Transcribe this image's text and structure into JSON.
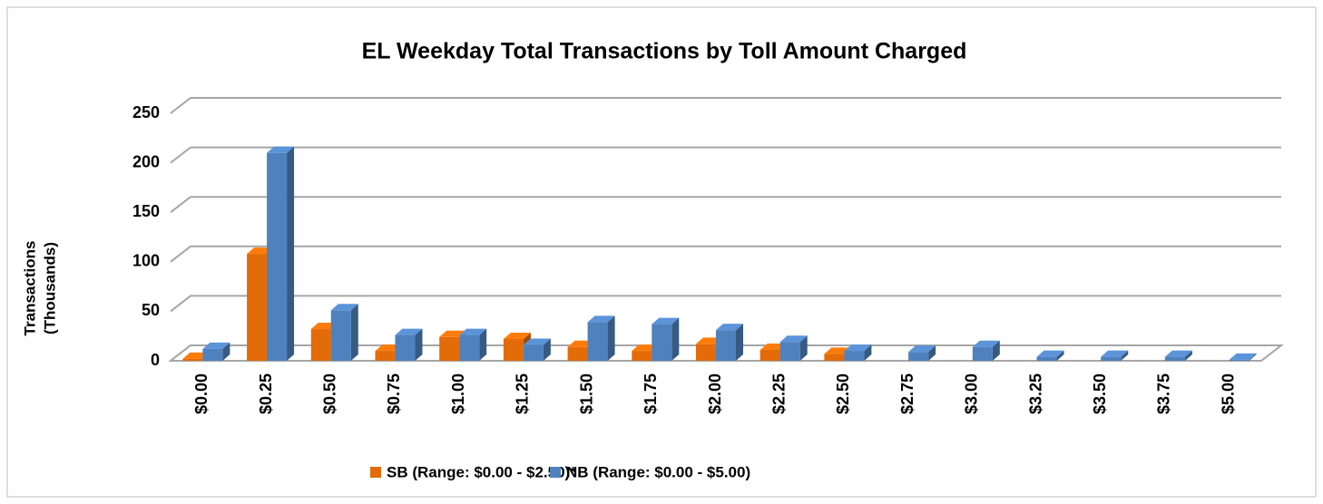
{
  "chart_data": {
    "type": "bar3d",
    "title": "EL Weekday Total Transactions by Toll Amount Charged",
    "y_label": [
      "Transactions",
      "(Thousands)"
    ],
    "categories": [
      "$0.00",
      "$0.25",
      "$0.50",
      "$0.75",
      "$1.00",
      "$1.25",
      "$1.50",
      "$1.75",
      "$2.00",
      "$2.25",
      "$2.50",
      "$2.75",
      "$3.00",
      "$3.25",
      "$3.50",
      "$3.75",
      "$5.00"
    ],
    "series": [
      {
        "name": "SB (Range: $0.00 - $2.50)*",
        "color": "#e36c09",
        "values": [
          2,
          108,
          32,
          10,
          24,
          22,
          14,
          10,
          17,
          11,
          7,
          null,
          null,
          null,
          null,
          null,
          null
        ]
      },
      {
        "name": "NB (Range: $0.00 - $5.00)",
        "color": "#4f81bd",
        "values": [
          12,
          210,
          51,
          26,
          26,
          16,
          39,
          37,
          31,
          19,
          10,
          9,
          14,
          4,
          4,
          4,
          1
        ]
      }
    ],
    "ylim": [
      0,
      250
    ],
    "yticks": [
      0,
      50,
      100,
      150,
      200,
      250
    ],
    "grid": true
  }
}
